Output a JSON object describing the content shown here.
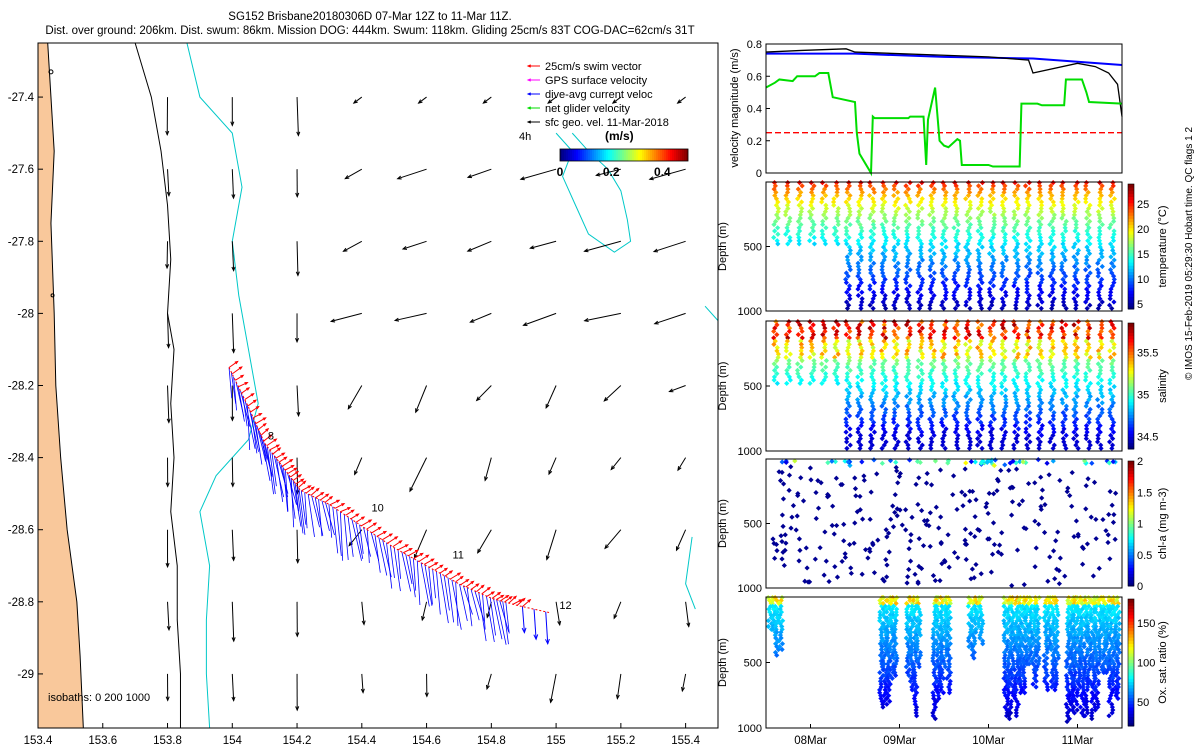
{
  "header": {
    "title_line1": "SG152 Brisbane20180306D 07-Mar 12Z to 11-Mar 11Z.",
    "title_line2": "Dist. over ground: 206km. Dist. swum: 86km. Mission DOG: 444km. Swum: 118km. Gliding 25cm/s 83T COG-DAC=62cm/s 31T"
  },
  "credit": "© IMOS 15-Feb-2019 05:29:30 Hobart time. QC flags 1  2",
  "colors": {
    "land": "#f9c89b",
    "coast": "#000000",
    "isobath_shallow": "#000000",
    "isobath_deep": "#00c8c8",
    "swim": "#ff0000",
    "gps": "#ff00ff",
    "dac": "#0000ff",
    "net": "#00dd00",
    "sfc": "#000000"
  },
  "chart_data": [
    {
      "type": "map",
      "name": "track-map",
      "xlim": [
        153.4,
        155.5
      ],
      "ylim": [
        -29.15,
        -27.25
      ],
      "x_ticks": [
        "153.4",
        "153.6",
        "153.8",
        "154",
        "154.2",
        "154.4",
        "154.6",
        "154.8",
        "155",
        "155.2",
        "155.4"
      ],
      "x_tick_values": [
        153.4,
        153.6,
        153.8,
        154.0,
        154.2,
        154.4,
        154.6,
        154.8,
        155.0,
        155.2,
        155.4
      ],
      "y_ticks": [
        "-27.4",
        "-27.6",
        "-27.8",
        "-28",
        "-28.2",
        "-28.4",
        "-28.6",
        "-28.8",
        "-29"
      ],
      "y_tick_values": [
        -27.4,
        -27.6,
        -27.8,
        -28.0,
        -28.2,
        -28.4,
        -28.6,
        -28.8,
        -29.0
      ],
      "isobaths_label": "isobaths: 0   200  1000",
      "legend": [
        {
          "label": "25cm/s swim vector",
          "color": "#ff0000"
        },
        {
          "label": "GPS surface velocity",
          "color": "#ff00ff"
        },
        {
          "label": "dive-avg current veloc",
          "color": "#0000ff"
        },
        {
          "label": "net glider velocity",
          "color": "#00dd00"
        },
        {
          "label": "sfc geo. vel. 11-Mar-2018",
          "color": "#000000"
        }
      ],
      "colorbar": {
        "label": "(m/s)",
        "ticks": [
          "0",
          "0.2",
          "0.4"
        ],
        "tick_values": [
          0,
          0.2,
          0.4
        ],
        "range": [
          0,
          0.5
        ],
        "time_label": "4h"
      },
      "track": [
        {
          "lon": 153.99,
          "lat": -28.15
        },
        {
          "lon": 154.05,
          "lat": -28.26
        },
        {
          "lon": 154.1,
          "lat": -28.36
        },
        {
          "lon": 154.16,
          "lat": -28.43
        },
        {
          "lon": 154.21,
          "lat": -28.49
        },
        {
          "lon": 154.3,
          "lat": -28.53
        },
        {
          "lon": 154.4,
          "lat": -28.59
        },
        {
          "lon": 154.5,
          "lat": -28.65
        },
        {
          "lon": 154.6,
          "lat": -28.7
        },
        {
          "lon": 154.7,
          "lat": -28.75
        },
        {
          "lon": 154.8,
          "lat": -28.79
        },
        {
          "lon": 154.88,
          "lat": -28.81
        },
        {
          "lon": 154.98,
          "lat": -28.83
        }
      ],
      "day_labels": [
        {
          "text": "8",
          "lon": 154.11,
          "lat": -28.35
        },
        {
          "text": "10",
          "lon": 154.43,
          "lat": -28.55
        },
        {
          "text": "11",
          "lon": 154.68,
          "lat": -28.68
        },
        {
          "text": "12",
          "lon": 155.01,
          "lat": -28.82
        }
      ],
      "sfc_vectors_grid": {
        "lons": [
          153.8,
          154.0,
          154.2,
          154.4,
          154.6,
          154.8,
          155.0,
          155.2,
          155.4
        ],
        "lats": [
          -27.4,
          -27.6,
          -27.8,
          -28.0,
          -28.2,
          -28.4,
          -28.6,
          -28.8,
          -29.0
        ]
      }
    },
    {
      "type": "line",
      "name": "velocity-magnitude",
      "ylabel": "velocity magnitude (m/s)",
      "ylim": [
        0,
        0.8
      ],
      "y_ticks": [
        "0",
        "0.2",
        "0.4",
        "0.6",
        "0.8"
      ],
      "y_tick_values": [
        0,
        0.2,
        0.4,
        0.6,
        0.8
      ],
      "xlim": [
        0,
        4
      ],
      "series": [
        {
          "name": "swim",
          "color": "#ff0000",
          "dashed": true,
          "x": [
            0,
            4
          ],
          "y": [
            0.25,
            0.25
          ]
        },
        {
          "name": "dac",
          "color": "#0000ff",
          "x": [
            0,
            1,
            2,
            3,
            3.5,
            4
          ],
          "y": [
            0.74,
            0.74,
            0.72,
            0.71,
            0.69,
            0.67
          ]
        },
        {
          "name": "sfc",
          "color": "#000000",
          "x": [
            0,
            0.4,
            0.9,
            1.0,
            1.5,
            2.0,
            2.5,
            2.95,
            3.0,
            3.5,
            3.7,
            3.85,
            3.95,
            4.0
          ],
          "y": [
            0.75,
            0.76,
            0.77,
            0.75,
            0.74,
            0.73,
            0.72,
            0.7,
            0.62,
            0.68,
            0.66,
            0.62,
            0.55,
            0.35
          ]
        },
        {
          "name": "net",
          "color": "#00dd00",
          "x": [
            0,
            0.1,
            0.15,
            0.3,
            0.35,
            0.55,
            0.6,
            0.7,
            0.75,
            1.0,
            1.02,
            1.05,
            1.18,
            1.2,
            1.22,
            1.6,
            1.62,
            1.77,
            1.8,
            1.82,
            1.9,
            1.95,
            2.0,
            2.05,
            2.15,
            2.18,
            2.2,
            2.5,
            2.55,
            2.85,
            2.87,
            3.05,
            3.1,
            3.35,
            3.37,
            3.55,
            3.6,
            3.63,
            4.0
          ],
          "y": [
            0.53,
            0.56,
            0.58,
            0.57,
            0.6,
            0.6,
            0.62,
            0.62,
            0.47,
            0.44,
            0.25,
            0.12,
            0.0,
            0.35,
            0.34,
            0.34,
            0.35,
            0.35,
            0.05,
            0.33,
            0.53,
            0.2,
            0.17,
            0.16,
            0.21,
            0.2,
            0.05,
            0.05,
            0.04,
            0.04,
            0.43,
            0.43,
            0.42,
            0.42,
            0.58,
            0.58,
            0.5,
            0.44,
            0.43
          ]
        }
      ]
    },
    {
      "type": "scatter",
      "name": "temperature-section",
      "ylabel": "Depth (m)",
      "clabel": "temperature (°C)",
      "ylim": [
        1000,
        0
      ],
      "y_ticks": [
        "500",
        "1000"
      ],
      "y_tick_values": [
        500,
        1000
      ],
      "crange": [
        4,
        29
      ],
      "c_ticks": [
        "5",
        "10",
        "15",
        "20",
        "25"
      ],
      "c_tick_values": [
        5,
        10,
        15,
        20,
        25
      ],
      "profiles": 29,
      "deep_start_index": 6,
      "shallow_depth": 500,
      "deep_depth": 1000,
      "bottom_depth": 1000
    },
    {
      "type": "scatter",
      "name": "salinity-section",
      "ylabel": "Depth (m)",
      "clabel": "salinity",
      "ylim": [
        1000,
        0
      ],
      "y_ticks": [
        "500",
        "1000"
      ],
      "y_tick_values": [
        500,
        1000
      ],
      "crange": [
        34.35,
        35.85
      ],
      "c_ticks": [
        "34.5",
        "35",
        "35.5"
      ],
      "c_tick_values": [
        34.5,
        35,
        35.5
      ],
      "profiles": 29,
      "deep_start_index": 6,
      "shallow_depth": 500,
      "deep_depth": 1000
    },
    {
      "type": "scatter",
      "name": "chla-section",
      "ylabel": "Depth (m)",
      "clabel": "chl-a (mg m-3)",
      "ylim": [
        1000,
        0
      ],
      "y_ticks": [
        "500",
        "1000"
      ],
      "y_tick_values": [
        500,
        1000
      ],
      "crange": [
        0,
        2
      ],
      "c_ticks": [
        "0",
        "0.5",
        "1",
        "1.5",
        "2"
      ],
      "c_tick_values": [
        0,
        0.5,
        1,
        1.5,
        2
      ],
      "points": 320
    },
    {
      "type": "scatter",
      "name": "oxygen-section",
      "ylabel": "Depth (m)",
      "clabel": "Ox. sat. ratio (%)",
      "ylim": [
        1000,
        0
      ],
      "y_ticks": [
        "500",
        "1000"
      ],
      "y_tick_values": [
        500,
        1000
      ],
      "crange": [
        20,
        180
      ],
      "c_ticks": [
        "50",
        "100",
        "150"
      ],
      "c_tick_values": [
        50,
        100,
        150
      ],
      "x_ticks": [
        "08Mar",
        "09Mar",
        "10Mar",
        "11Mar"
      ],
      "x_tick_values": [
        0.5,
        1.5,
        2.5,
        3.5
      ]
    }
  ]
}
